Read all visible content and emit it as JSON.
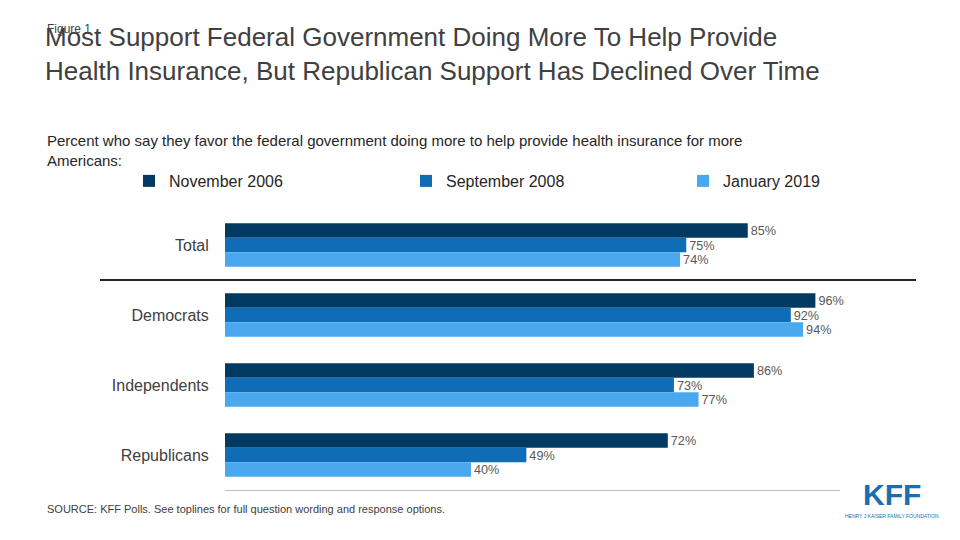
{
  "chart_data": {
    "type": "bar",
    "orientation": "horizontal",
    "figure_label": "Figure 1",
    "title": [
      "Most Support Federal Government Doing More To Help Provide",
      "Health Insurance, But Republican Support Has Declined Over Time"
    ],
    "subtitle": [
      "Percent who say they favor the federal government doing more to help provide health insurance for more",
      "Americans:"
    ],
    "source": "SOURCE: KFF Polls. See toplines for full question wording and response options.",
    "logo_text": "KFF",
    "logo_subtext": "HENRY J KAISER FAMILY FOUNDATION",
    "categories": [
      "Total",
      "Democrats",
      "Independents",
      "Republicans"
    ],
    "series": [
      {
        "name": "November 2006",
        "color": "#003a63",
        "values": [
          85,
          96,
          86,
          72
        ],
        "value_labels": [
          "85%",
          "96%",
          "86%",
          "72%"
        ]
      },
      {
        "name": "September 2008",
        "color": "#0f6cb6",
        "values": [
          75,
          92,
          73,
          49
        ],
        "value_labels": [
          "75%",
          "92%",
          "73%",
          "49%"
        ]
      },
      {
        "name": "January 2019",
        "color": "#4aa8ee",
        "values": [
          74,
          94,
          77,
          40
        ],
        "value_labels": [
          "74%",
          "94%",
          "77%",
          "40%"
        ]
      }
    ],
    "xlim": [
      0,
      100
    ],
    "xticks": [],
    "tick_labels": "y",
    "grid": false,
    "legend": "top",
    "data_labels": true
  }
}
